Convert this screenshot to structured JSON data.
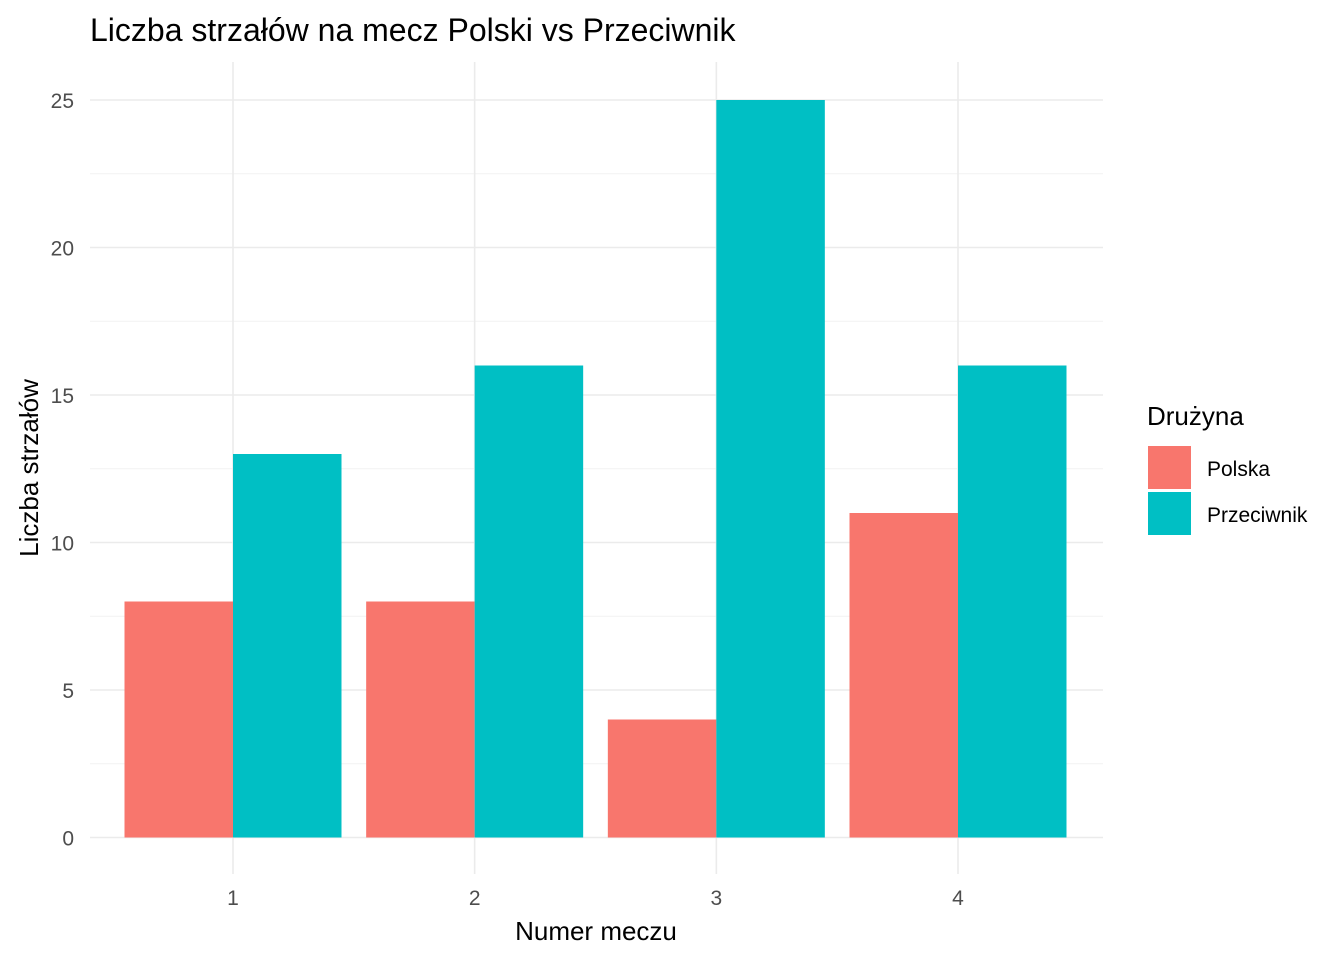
{
  "chart_data": {
    "type": "bar",
    "title": "Liczba strzałów na mecz Polski vs Przeciwnik",
    "xlabel": "Numer meczu",
    "ylabel": "Liczba strzałów",
    "categories": [
      "1",
      "2",
      "3",
      "4"
    ],
    "series": [
      {
        "name": "Polska",
        "values": [
          8,
          8,
          4,
          11
        ],
        "color": "#F8766D"
      },
      {
        "name": "Przeciwnik",
        "values": [
          13,
          16,
          25,
          16
        ],
        "color": "#00BFC4"
      }
    ],
    "ylim": [
      0,
      26.25
    ],
    "yticks": [
      0,
      5,
      10,
      15,
      20,
      25
    ],
    "legend": {
      "title": "Drużyna",
      "position": "right"
    },
    "grid": true
  }
}
